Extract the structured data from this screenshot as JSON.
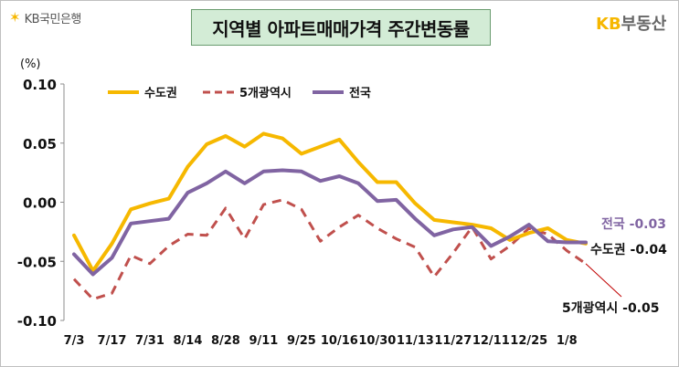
{
  "header": {
    "bank_logo": "KB국민은행",
    "title": "지역별 아파트매매가격 주간변동률",
    "brand_logo_kb": "KB",
    "brand_logo_rest": "부동산"
  },
  "colors": {
    "capital": "#f6b800",
    "metro": "#c0504d",
    "national": "#8064a2",
    "logo": "#f6b700"
  },
  "chart_data": {
    "type": "line",
    "unit": "(%)",
    "ylim": [
      -0.1,
      0.1
    ],
    "yticks": [
      "0.10",
      "0.05",
      "0.00",
      "-0.05",
      "-0.10"
    ],
    "ytick_values": [
      0.1,
      0.05,
      0.0,
      -0.05,
      -0.1
    ],
    "grid": false,
    "legend_position": "top",
    "x_labels": [
      "7/3",
      "7/17",
      "7/31",
      "8/14",
      "8/28",
      "9/11",
      "9/25",
      "10/16",
      "10/30",
      "11/13",
      "11/27",
      "12/11",
      "12/25",
      "1/8"
    ],
    "series": [
      {
        "name": "수도권",
        "style": "solid",
        "color": "#f6b800",
        "values": [
          -0.028,
          -0.058,
          -0.035,
          -0.006,
          -0.001,
          0.003,
          0.03,
          0.049,
          0.056,
          0.047,
          0.058,
          0.054,
          0.041,
          0.047,
          0.053,
          0.034,
          0.017,
          0.017,
          -0.001,
          -0.015,
          -0.017,
          -0.019,
          -0.022,
          -0.032,
          -0.026,
          -0.022,
          -0.032,
          -0.035
        ],
        "end_label": "수도권",
        "end_value_label": "-0.04"
      },
      {
        "name": "5개광역시",
        "style": "dashed",
        "color": "#c0504d",
        "values": [
          -0.065,
          -0.082,
          -0.077,
          -0.045,
          -0.052,
          -0.037,
          -0.027,
          -0.028,
          -0.005,
          -0.031,
          -0.002,
          0.002,
          -0.006,
          -0.033,
          -0.021,
          -0.011,
          -0.022,
          -0.031,
          -0.038,
          -0.063,
          -0.043,
          -0.021,
          -0.048,
          -0.037,
          -0.022,
          -0.027,
          -0.041,
          -0.052
        ],
        "end_label": "5개광역시",
        "end_value_label": "-0.05"
      },
      {
        "name": "전국",
        "style": "solid",
        "color": "#8064a2",
        "values": [
          -0.044,
          -0.061,
          -0.047,
          -0.018,
          -0.016,
          -0.014,
          0.008,
          0.016,
          0.026,
          0.016,
          0.026,
          0.027,
          0.026,
          0.018,
          0.022,
          0.016,
          0.001,
          0.002,
          -0.014,
          -0.028,
          -0.023,
          -0.021,
          -0.037,
          -0.029,
          -0.019,
          -0.033,
          -0.034,
          -0.034
        ],
        "end_label": "전국",
        "end_value_label": "-0.03"
      }
    ]
  }
}
